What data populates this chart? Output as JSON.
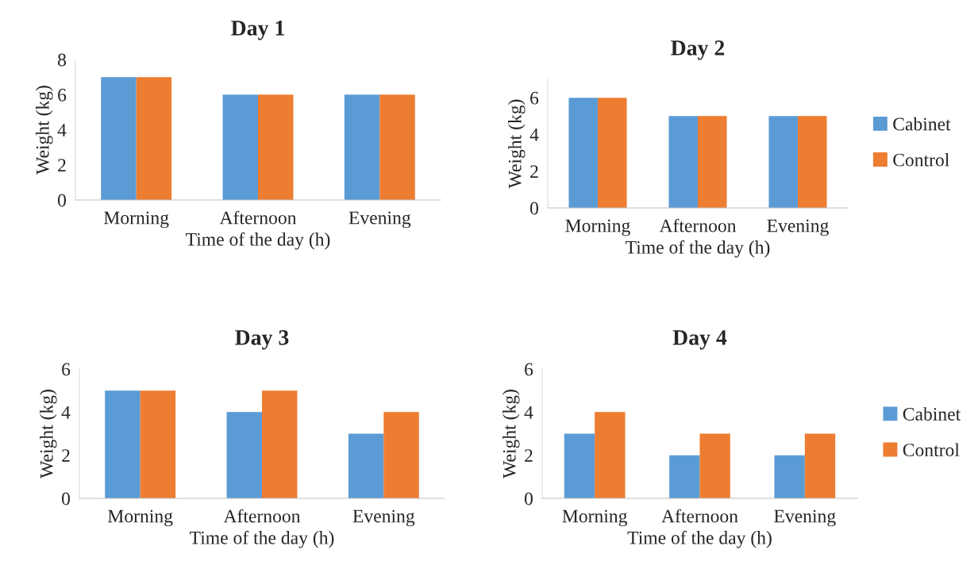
{
  "chart_data": [
    {
      "type": "bar",
      "title": "Day 1",
      "xlabel": "Time of the day (h)",
      "ylabel": "Weight (kg)",
      "categories": [
        "Morning",
        "Afternoon",
        "Evening"
      ],
      "series": [
        {
          "color": "#5b9bd5",
          "values": [
            7,
            6,
            6
          ]
        },
        {
          "color": "#ed7d31",
          "values": [
            7,
            6,
            6
          ]
        }
      ],
      "ylim": [
        0,
        8
      ],
      "yticks": [
        0,
        2,
        4,
        6,
        8
      ],
      "grid": false,
      "legend": false
    },
    {
      "type": "bar",
      "title": "Day 2",
      "xlabel": "Time of the day (h)",
      "ylabel": "Weight (kg)",
      "categories": [
        "Morning",
        "Afternoon",
        "Evening"
      ],
      "series": [
        {
          "name": "Cabinet",
          "color": "#5b9bd5",
          "values": [
            6,
            5,
            5
          ]
        },
        {
          "name": "Control",
          "color": "#ed7d31",
          "values": [
            6,
            5,
            5
          ]
        }
      ],
      "ylim": [
        0,
        7
      ],
      "yticks": [
        0,
        2,
        4,
        6
      ],
      "grid": false,
      "legend": "right"
    },
    {
      "type": "bar",
      "title": "Day 3",
      "xlabel": "Time of the day (h)",
      "ylabel": "Weight (kg)",
      "categories": [
        "Morning",
        "Afternoon",
        "Evening"
      ],
      "series": [
        {
          "color": "#5b9bd5",
          "values": [
            5,
            4,
            3
          ]
        },
        {
          "color": "#ed7d31",
          "values": [
            5,
            5,
            4
          ]
        }
      ],
      "ylim": [
        0,
        6
      ],
      "yticks": [
        0,
        2,
        4,
        6
      ],
      "grid": false,
      "legend": false
    },
    {
      "type": "bar",
      "title": "Day 4",
      "xlabel": "Time of the day (h)",
      "ylabel": "Weight (kg)",
      "categories": [
        "Morning",
        "Afternoon",
        "Evening"
      ],
      "series": [
        {
          "name": "Cabinet",
          "color": "#5b9bd5",
          "values": [
            3,
            2,
            2
          ]
        },
        {
          "name": "Control",
          "color": "#ed7d31",
          "values": [
            4,
            3,
            3
          ]
        }
      ],
      "ylim": [
        0,
        6
      ],
      "yticks": [
        0,
        2,
        4,
        6
      ],
      "grid": false,
      "legend": "right"
    }
  ]
}
